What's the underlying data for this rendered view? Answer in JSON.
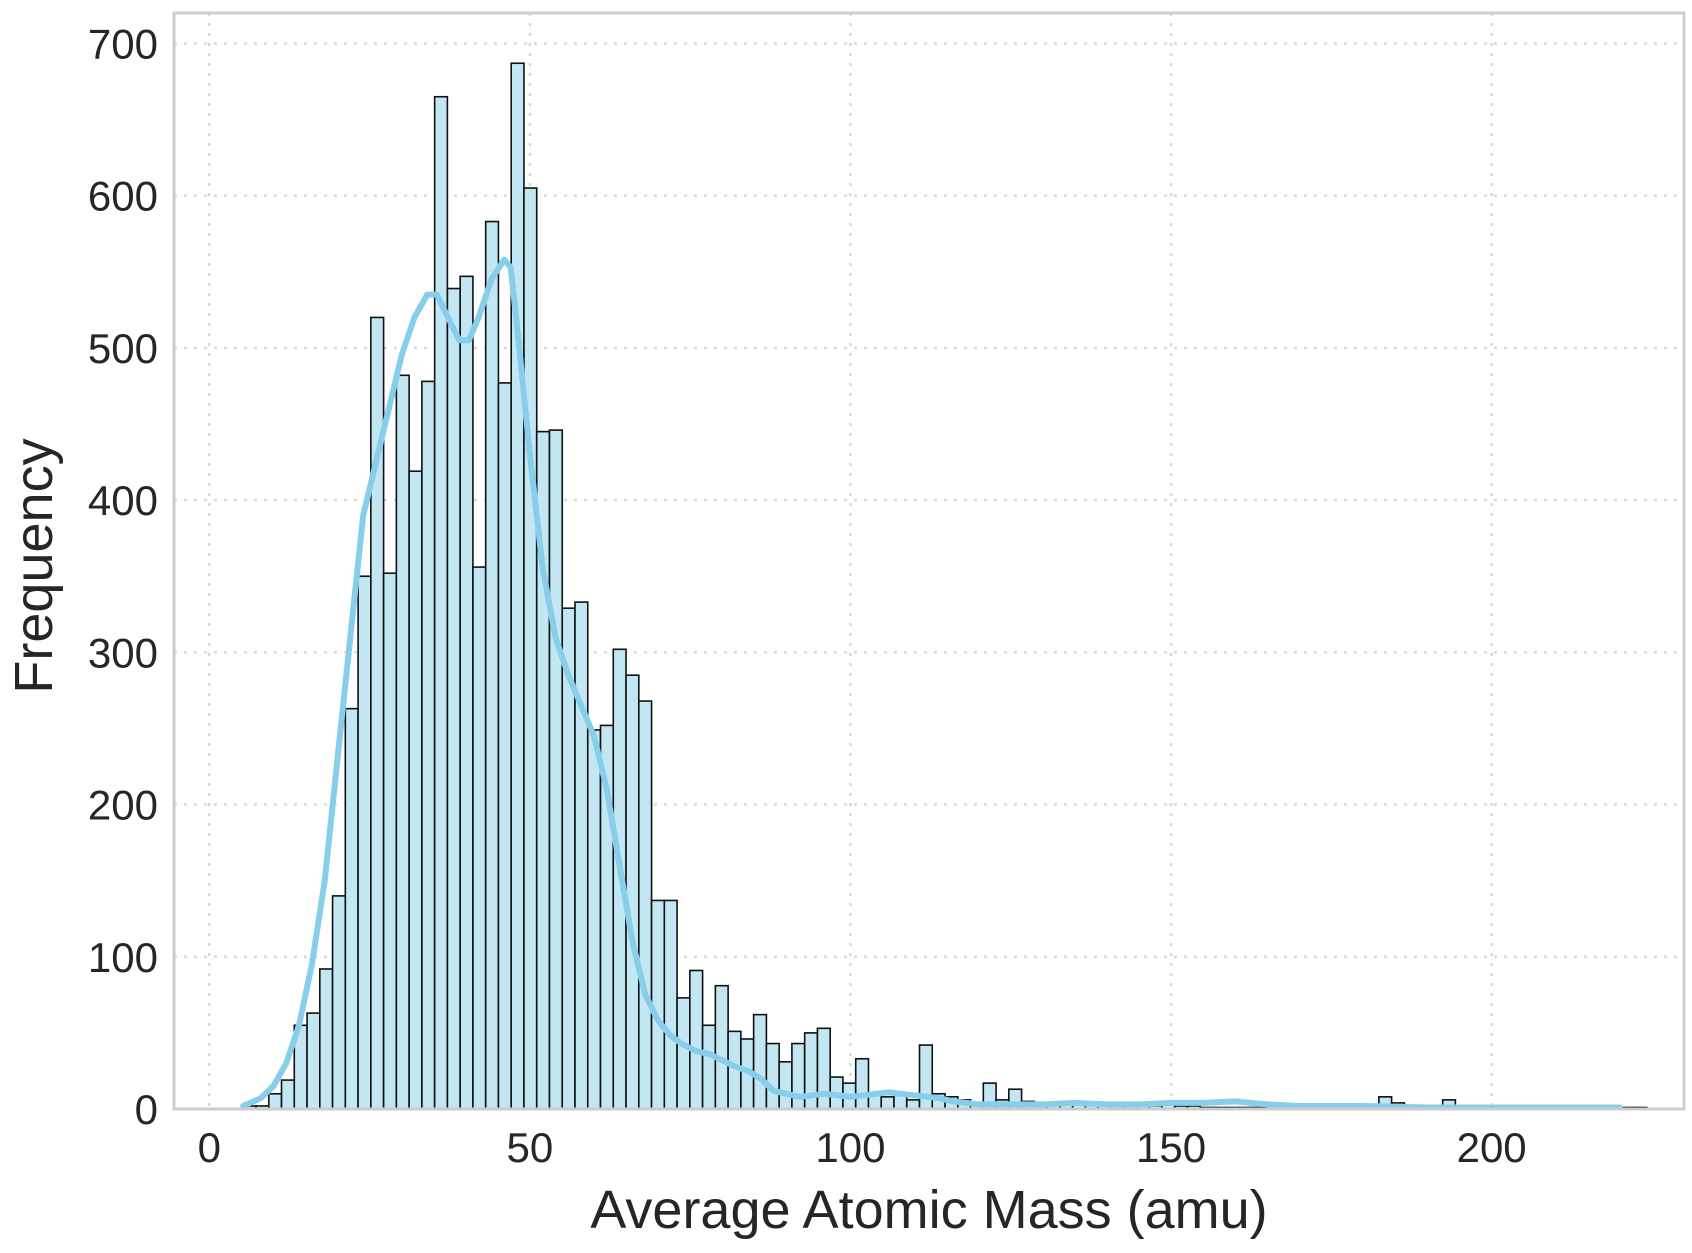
{
  "chart_data": {
    "type": "bar",
    "subtype": "histogram_with_kde",
    "title": "",
    "xlabel": "Average Atomic Mass (amu)",
    "ylabel": "Frequency",
    "xlim": [
      -5.5,
      230
    ],
    "ylim": [
      0,
      720
    ],
    "xticks": [
      0,
      50,
      100,
      150,
      200
    ],
    "yticks": [
      0,
      100,
      200,
      300,
      400,
      500,
      600,
      700
    ],
    "grid": true,
    "bin_start": 5.3,
    "bin_width": 1.99,
    "counts": [
      2,
      2,
      10,
      19,
      55,
      63,
      92,
      140,
      263,
      350,
      520,
      352,
      482,
      419,
      478,
      665,
      539,
      547,
      356,
      583,
      477,
      687,
      605,
      445,
      446,
      329,
      333,
      249,
      252,
      302,
      285,
      268,
      137,
      137,
      73,
      91,
      55,
      81,
      51,
      46,
      62,
      43,
      31,
      43,
      50,
      53,
      21,
      17,
      33,
      10,
      8,
      9,
      6,
      42,
      10,
      8,
      6,
      4,
      17,
      6,
      13,
      5,
      3,
      3,
      3,
      4,
      3,
      3,
      2,
      3,
      2,
      2,
      5,
      2,
      2,
      1,
      1,
      1,
      1,
      1,
      1,
      1,
      1,
      1,
      1,
      1,
      1,
      2,
      1,
      8,
      4,
      1,
      1,
      1,
      6,
      1,
      1,
      1,
      1,
      1,
      1,
      1,
      1,
      1,
      1,
      1,
      1,
      1,
      1,
      1
    ],
    "kde": {
      "x": [
        5.3,
        8,
        10,
        12,
        14,
        16,
        18,
        20,
        22,
        24,
        26,
        28,
        30,
        32,
        34,
        35.5,
        37,
        39,
        40.5,
        42,
        44,
        46,
        47,
        48,
        50,
        52,
        54,
        56,
        58,
        60,
        62,
        64,
        66,
        68,
        70,
        72,
        74,
        76,
        78,
        80,
        82,
        84,
        86,
        88,
        90,
        92,
        94,
        96,
        98,
        100,
        102,
        104,
        106,
        108,
        110,
        112,
        114,
        116,
        118,
        120,
        125,
        130,
        135,
        140,
        145,
        150,
        155,
        160,
        165,
        170,
        180,
        190,
        200,
        210,
        220
      ],
      "y": [
        2,
        7,
        15,
        30,
        55,
        95,
        150,
        230,
        310,
        390,
        425,
        460,
        495,
        520,
        535,
        535,
        522,
        505,
        505,
        520,
        545,
        558,
        553,
        515,
        430,
        355,
        310,
        285,
        265,
        245,
        210,
        160,
        110,
        75,
        58,
        48,
        42,
        38,
        36,
        32,
        28,
        25,
        20,
        12,
        10,
        8,
        9,
        10,
        9,
        8,
        9,
        10,
        11,
        10,
        9,
        8,
        7,
        5,
        4,
        3,
        3,
        3,
        4,
        3,
        3,
        4,
        4,
        5,
        3,
        2,
        2,
        1,
        1,
        1,
        1
      ]
    },
    "bar_color": "#c3e6f3",
    "bar_edge_color": "#111111",
    "kde_color": "#87ceeb"
  }
}
